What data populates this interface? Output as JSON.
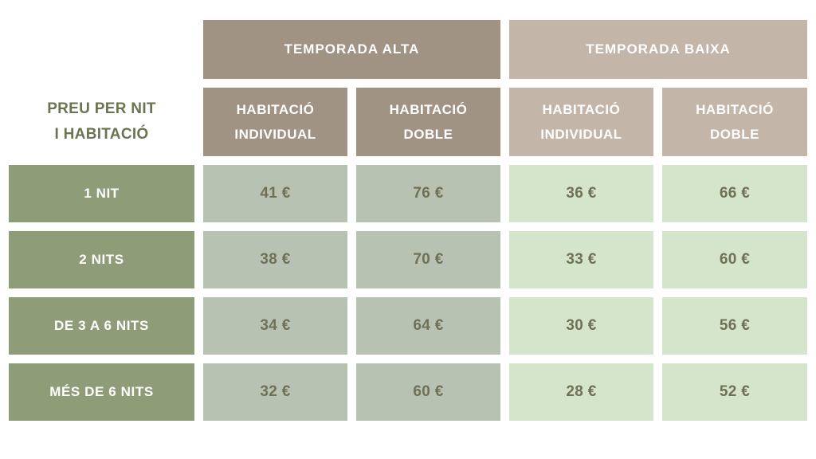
{
  "colors": {
    "alta_header_bg": "#a09384",
    "baixa_header_bg": "#c3b6a9",
    "row_label_bg": "#8e9d78",
    "alta_cell_bg": "#b8c2b3",
    "baixa_cell_bg": "#d5e5cb",
    "header_text": "#ffffff",
    "corner_text": "#6b7452",
    "value_text": "#6f7156",
    "page_bg": "#ffffff"
  },
  "table": {
    "corner_label_line1": "PREU PER NIT",
    "corner_label_line2": "I HABITACIÓ",
    "groups": [
      {
        "label": "TEMPORADA ALTA",
        "columns": [
          {
            "line1": "HABITACIÓ",
            "line2": "INDIVIDUAL"
          },
          {
            "line1": "HABITACIÓ",
            "line2": "DOBLE"
          }
        ]
      },
      {
        "label": "TEMPORADA BAIXA",
        "columns": [
          {
            "line1": "HABITACIÓ",
            "line2": "INDIVIDUAL"
          },
          {
            "line1": "HABITACIÓ",
            "line2": "DOBLE"
          }
        ]
      }
    ],
    "rows": [
      {
        "label": "1 NIT",
        "values": [
          "41 €",
          "76 €",
          "36 €",
          "66 €"
        ]
      },
      {
        "label": "2 NITS",
        "values": [
          "38 €",
          "70 €",
          "33 €",
          "60 €"
        ]
      },
      {
        "label": "DE 3 A 6 NITS",
        "values": [
          "34 €",
          "64 €",
          "30 €",
          "56 €"
        ]
      },
      {
        "label": "MÉS DE 6 NITS",
        "values": [
          "32 €",
          "60 €",
          "28 €",
          "52 €"
        ]
      }
    ]
  },
  "chart_data": {
    "type": "table",
    "title": "PREU PER NIT I HABITACIÓ",
    "column_groups": [
      "TEMPORADA ALTA",
      "TEMPORADA BAIXA"
    ],
    "columns": [
      "TEMPORADA ALTA — HABITACIÓ INDIVIDUAL",
      "TEMPORADA ALTA — HABITACIÓ DOBLE",
      "TEMPORADA BAIXA — HABITACIÓ INDIVIDUAL",
      "TEMPORADA BAIXA — HABITACIÓ DOBLE"
    ],
    "row_labels": [
      "1 NIT",
      "2 NITS",
      "DE 3 A 6 NITS",
      "MÉS DE 6 NITS"
    ],
    "values_eur": [
      [
        41,
        76,
        36,
        66
      ],
      [
        38,
        70,
        33,
        60
      ],
      [
        34,
        64,
        30,
        56
      ],
      [
        32,
        60,
        28,
        52
      ]
    ],
    "currency": "EUR"
  }
}
